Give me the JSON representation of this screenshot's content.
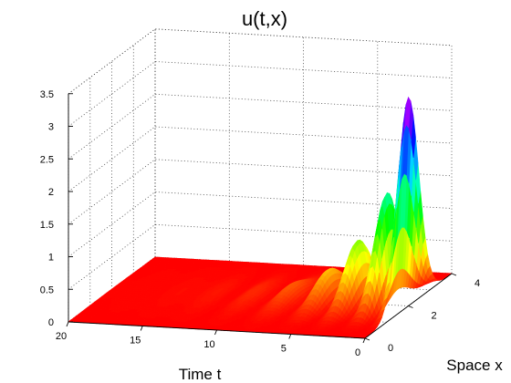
{
  "chart_data": {
    "type": "surface",
    "title": "u(t,x)",
    "xlabel": "Time t",
    "ylabel": "Space x",
    "zlabel": "",
    "t_range": [
      0,
      20
    ],
    "x_range": [
      0,
      4
    ],
    "z_range": [
      0,
      3.5
    ],
    "t_ticks": [
      "20",
      "15",
      "10",
      "5",
      "0"
    ],
    "x_ticks": [
      "0",
      "2",
      "4"
    ],
    "z_ticks": [
      "0",
      "0.5",
      "1",
      "1.5",
      "2",
      "2.5",
      "3",
      "3.5"
    ],
    "grid": true,
    "colormap": "hsv",
    "view": "3d oblique, time axis running from 20 (left) to 0 (right)",
    "shape_summary": "Gaussian hump centred near x = 2 growing as t decreases toward 0; peak about 3.2 at t = 0; oscillation crests near t = 1.5, 3.5, 5.5, 8, 10.5, 13 with values about 1.7, 0.95, 0.48, 0.22, 0.1, 0.05; nearly flat near 0 for t above 15",
    "peak": {
      "t": 0,
      "x": 2,
      "u": 3.2
    },
    "crests": [
      {
        "t": 0,
        "u": 3.2
      },
      {
        "t": 1.5,
        "u": 1.7
      },
      {
        "t": 3.5,
        "u": 0.95
      },
      {
        "t": 5.5,
        "u": 0.48
      },
      {
        "t": 8,
        "u": 0.22
      },
      {
        "t": 10.5,
        "u": 0.1
      },
      {
        "t": 13,
        "u": 0.05
      }
    ]
  }
}
